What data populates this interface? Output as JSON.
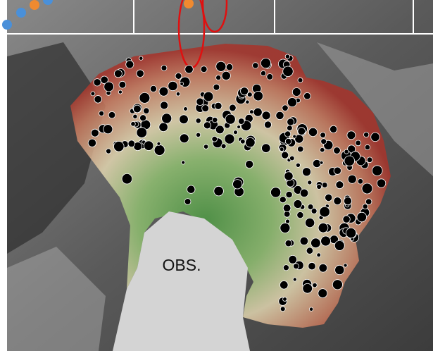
{
  "label": "OBS."
}
